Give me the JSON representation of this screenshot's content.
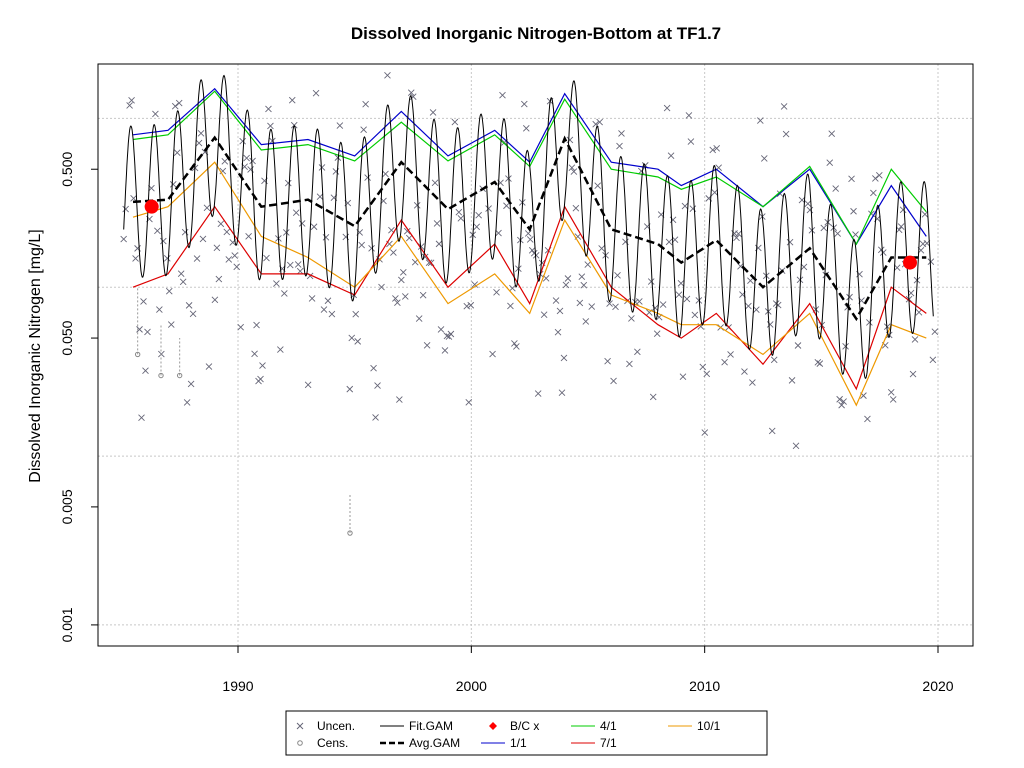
{
  "chart_data": {
    "type": "line",
    "title": "Dissolved Inorganic Nitrogen-Bottom at TF1.7",
    "xlabel": "",
    "ylabel": "Dissolved Inorganic Nitrogen [mg/L]",
    "y_scale": "log",
    "xlim": [
      1984.0,
      2021.5
    ],
    "ylim": [
      0.00075,
      2.1
    ],
    "x_ticks": [
      1990,
      2000,
      2010,
      2020
    ],
    "y_ticks": [
      0.001,
      0.005,
      0.05,
      0.5
    ],
    "y_tick_labels": [
      "0.001",
      "0.005",
      "0.050",
      "0.500"
    ],
    "grid": true,
    "legend_position": "bottom",
    "colors": {
      "uncensored": "#666677",
      "censored": "#888888",
      "fit_gam": "#000000",
      "avg_gam": "#000000",
      "bc": "#ff0000",
      "s_1_1": "#0000cc",
      "s_4_1": "#00cc00",
      "s_7_1": "#dd0000",
      "s_10_1": "#ee9900"
    },
    "series_summary": [
      {
        "name": "Avg.GAM",
        "x": [
          1985.5,
          1987,
          1989,
          1991,
          1993,
          1995,
          1997,
          1999,
          2001,
          2002.5,
          2004,
          2006,
          2008,
          2009,
          2010.5,
          2012.5,
          2014.5,
          2016.5,
          2018,
          2019.5
        ],
        "values": [
          0.32,
          0.33,
          0.77,
          0.3,
          0.33,
          0.23,
          0.55,
          0.29,
          0.42,
          0.22,
          0.76,
          0.22,
          0.18,
          0.14,
          0.19,
          0.1,
          0.17,
          0.065,
          0.15,
          0.15
        ]
      },
      {
        "name": "1/1",
        "x": [
          1985.5,
          1987,
          1989,
          1991,
          1993,
          1995,
          1997,
          1999,
          2001,
          2002.5,
          2004,
          2006,
          2008,
          2009,
          2010.5,
          2012.5,
          2014.5,
          2016.5,
          2018,
          2019.5
        ],
        "values": [
          0.8,
          0.85,
          1.5,
          0.7,
          0.75,
          0.6,
          1.1,
          0.6,
          0.85,
          0.55,
          1.4,
          0.55,
          0.5,
          0.4,
          0.5,
          0.3,
          0.5,
          0.18,
          0.4,
          0.2
        ]
      },
      {
        "name": "4/1",
        "x": [
          1985.5,
          1987,
          1989,
          1991,
          1993,
          1995,
          1997,
          1999,
          2001,
          2002.5,
          2004,
          2006,
          2008,
          2009,
          2010.5,
          2012.5,
          2014.5,
          2016.5,
          2018,
          2019.5
        ],
        "values": [
          0.75,
          0.8,
          1.45,
          0.65,
          0.7,
          0.56,
          0.95,
          0.56,
          0.8,
          0.52,
          1.3,
          0.5,
          0.45,
          0.38,
          0.45,
          0.3,
          0.52,
          0.18,
          0.5,
          0.28
        ]
      },
      {
        "name": "7/1",
        "x": [
          1985.5,
          1987,
          1989,
          1991,
          1993,
          1995,
          1997,
          1999,
          2001,
          2002.5,
          2004,
          2006,
          2008,
          2009,
          2010.5,
          2012.5,
          2014.5,
          2016.5,
          2018,
          2019.5
        ],
        "values": [
          0.1,
          0.12,
          0.3,
          0.12,
          0.12,
          0.09,
          0.25,
          0.1,
          0.18,
          0.08,
          0.3,
          0.1,
          0.06,
          0.05,
          0.07,
          0.035,
          0.08,
          0.025,
          0.1,
          0.07
        ]
      },
      {
        "name": "10/1",
        "x": [
          1985.5,
          1987,
          1989,
          1991,
          1993,
          1995,
          1997,
          1999,
          2001,
          2002.5,
          2004,
          2006,
          2008,
          2009,
          2010.5,
          2012.5,
          2014.5,
          2016.5,
          2018,
          2019.5
        ],
        "values": [
          0.26,
          0.3,
          0.55,
          0.2,
          0.15,
          0.1,
          0.2,
          0.08,
          0.12,
          0.07,
          0.25,
          0.09,
          0.07,
          0.06,
          0.06,
          0.04,
          0.07,
          0.02,
          0.06,
          0.05
        ]
      },
      {
        "name": "B/C x",
        "x": [
          1986.3,
          2018.8
        ],
        "values": [
          0.3,
          0.14
        ]
      }
    ],
    "legend": [
      {
        "label": "Uncen.",
        "symbol": "cross"
      },
      {
        "label": "Cens.",
        "symbol": "circle"
      },
      {
        "label": "Fit.GAM",
        "symbol": "solid-line"
      },
      {
        "label": "Avg.GAM",
        "symbol": "dashed-line"
      },
      {
        "label": "B/C x",
        "symbol": "red-diamond"
      },
      {
        "label": "1/1",
        "symbol": "blue-line"
      },
      {
        "label": "4/1",
        "symbol": "green-line"
      },
      {
        "label": "7/1",
        "symbol": "red-line"
      },
      {
        "label": "10/1",
        "symbol": "orange-line"
      }
    ]
  }
}
